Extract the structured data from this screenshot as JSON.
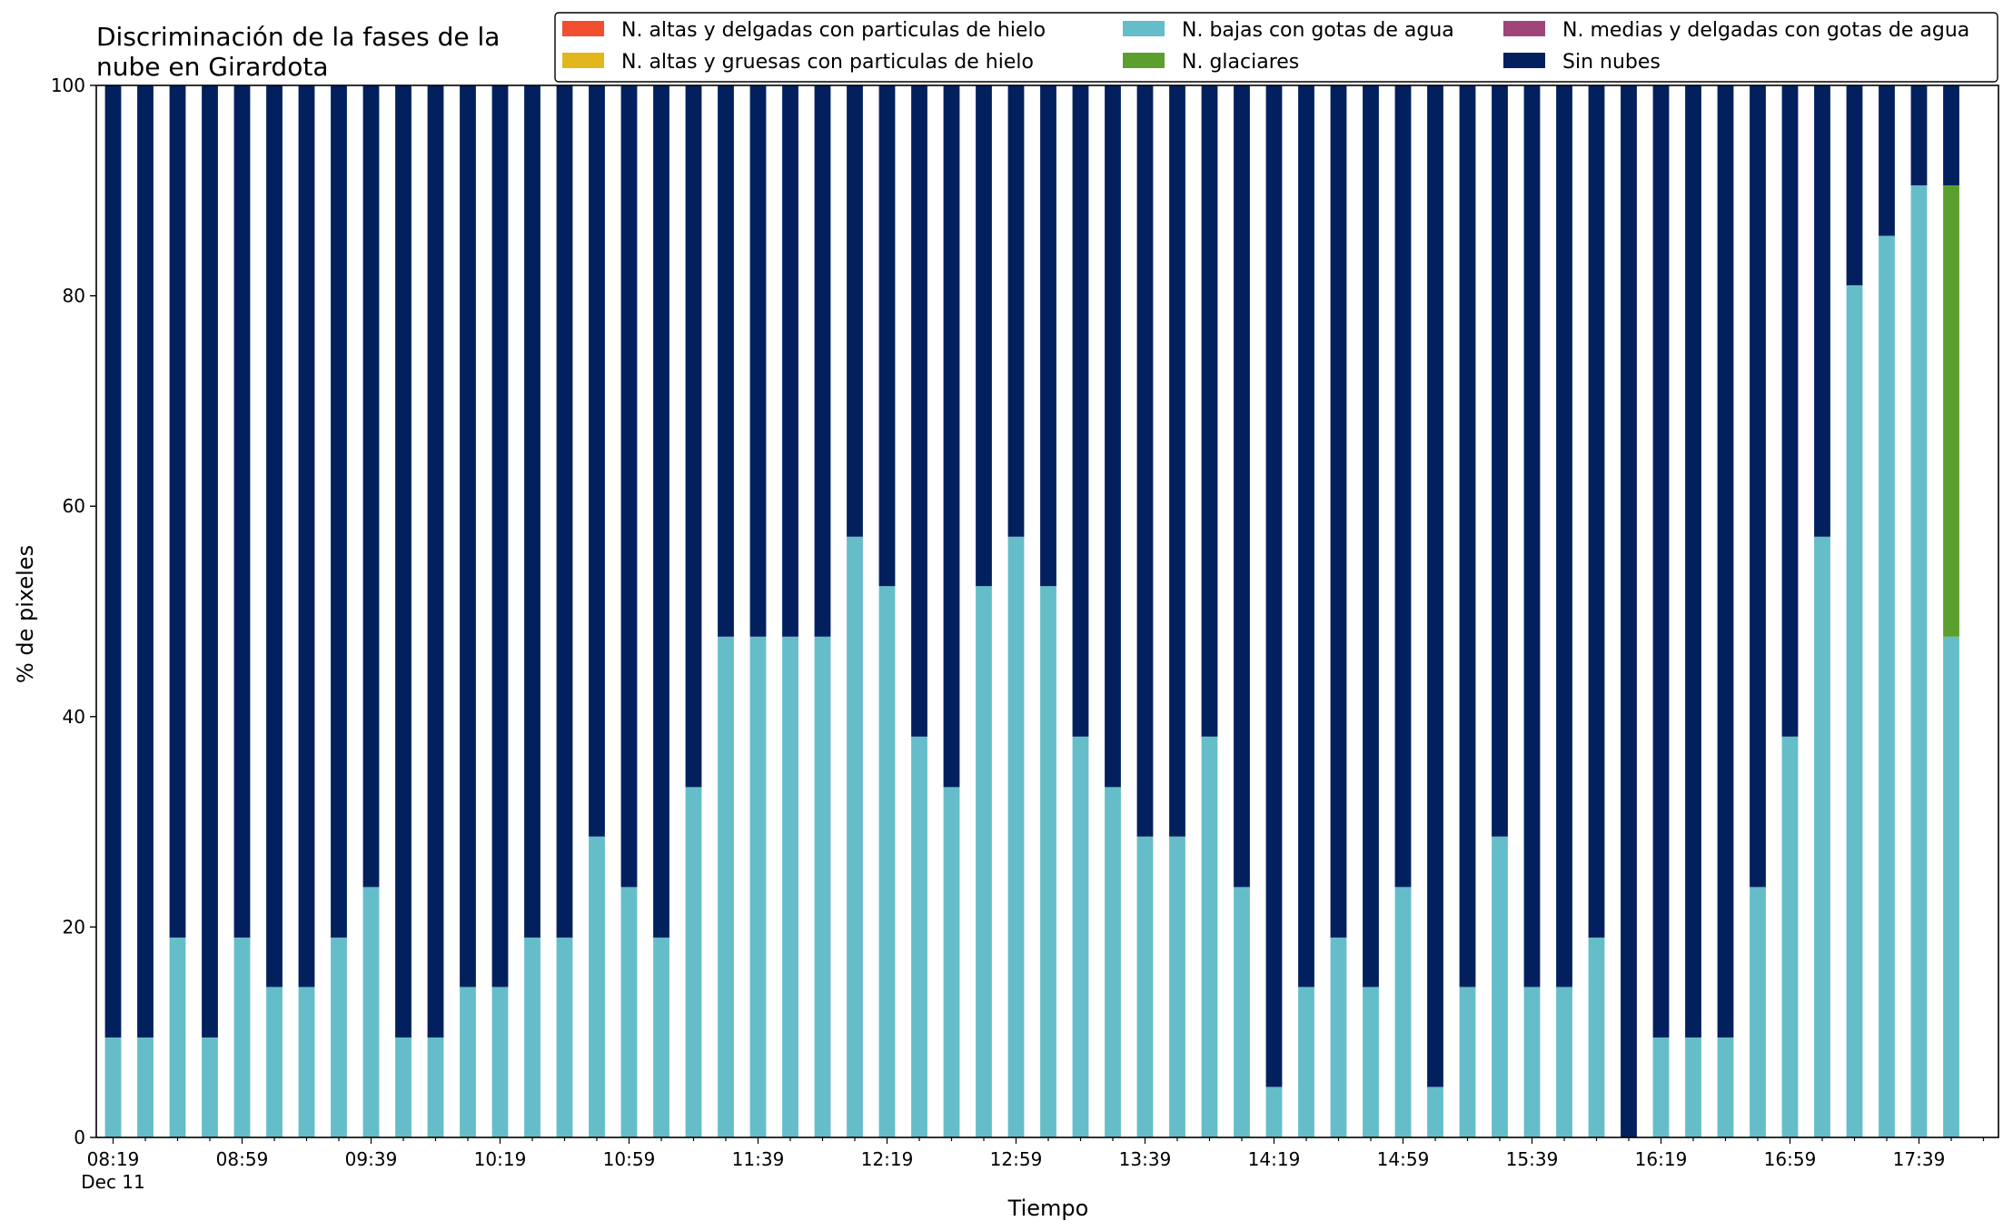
{
  "chart_data": {
    "type": "bar",
    "stacked": true,
    "title_lines": [
      "Discriminación de la fases de la",
      "nube en Girardota"
    ],
    "xlabel": "Tiempo",
    "ylabel": "% de pixeles",
    "ylim": [
      0,
      100
    ],
    "yticks": [
      0,
      20,
      40,
      60,
      80,
      100
    ],
    "x_start": "08:19",
    "x_interval_minutes": 10,
    "x_date_label": "Dec 11",
    "x_tick_labels": [
      "08:19",
      "08:59",
      "09:39",
      "10:19",
      "10:59",
      "11:39",
      "12:19",
      "12:59",
      "13:39",
      "14:19",
      "14:59",
      "15:39",
      "16:19",
      "16:59",
      "17:39"
    ],
    "legend_placement": "top-right",
    "series": [
      {
        "name": "N. altas y delgadas con particulas de hielo",
        "color": "#f04e2e",
        "values": [
          0,
          0,
          0,
          0,
          0,
          0,
          0,
          0,
          0,
          0,
          0,
          0,
          0,
          0,
          0,
          0,
          0,
          0,
          0,
          0,
          0,
          0,
          0,
          0,
          0,
          0,
          0,
          0,
          0,
          0,
          0,
          0,
          0,
          0,
          0,
          0,
          0,
          0,
          0,
          0,
          0,
          0,
          0,
          0,
          0,
          0,
          0,
          0,
          0,
          0,
          0,
          0,
          0,
          0,
          0,
          0,
          0,
          0
        ]
      },
      {
        "name": "N. altas y gruesas con particulas de hielo",
        "color": "#e2b71d",
        "values": [
          0,
          0,
          0,
          0,
          0,
          0,
          0,
          0,
          0,
          0,
          0,
          0,
          0,
          0,
          0,
          0,
          0,
          0,
          0,
          0,
          0,
          0,
          0,
          0,
          0,
          0,
          0,
          0,
          0,
          0,
          0,
          0,
          0,
          0,
          0,
          0,
          0,
          0,
          0,
          0,
          0,
          0,
          0,
          0,
          0,
          0,
          0,
          0,
          0,
          0,
          0,
          0,
          0,
          0,
          0,
          0,
          0,
          0
        ]
      },
      {
        "name": "N. bajas con gotas de agua",
        "color": "#65bdc9",
        "values": [
          9.5,
          9.5,
          19,
          9.5,
          19,
          14.3,
          14.3,
          19,
          23.8,
          9.5,
          9.5,
          14.3,
          14.3,
          19,
          19,
          28.6,
          23.8,
          19,
          33.3,
          47.6,
          47.6,
          47.6,
          47.6,
          57.1,
          52.4,
          38.1,
          33.3,
          52.4,
          57.1,
          52.4,
          38.1,
          33.3,
          28.6,
          28.6,
          38.1,
          23.8,
          4.8,
          14.3,
          19,
          14.3,
          23.8,
          4.8,
          14.3,
          28.6,
          14.3,
          14.3,
          19,
          0,
          9.5,
          9.5,
          9.5,
          23.8,
          38.1,
          57.1,
          81,
          85.7,
          90.5,
          47.6
        ]
      },
      {
        "name": "N. glaciares",
        "color": "#5b9f2f",
        "values": [
          0,
          0,
          0,
          0,
          0,
          0,
          0,
          0,
          0,
          0,
          0,
          0,
          0,
          0,
          0,
          0,
          0,
          0,
          0,
          0,
          0,
          0,
          0,
          0,
          0,
          0,
          0,
          0,
          0,
          0,
          0,
          0,
          0,
          0,
          0,
          0,
          0,
          0,
          0,
          0,
          0,
          0,
          0,
          0,
          0,
          0,
          0,
          0,
          0,
          0,
          0,
          0,
          0,
          0,
          0,
          0,
          0,
          42.9
        ]
      },
      {
        "name": "N. medias y delgadas con gotas de agua",
        "color": "#a0457a",
        "values": [
          0,
          0,
          0,
          0,
          0,
          0,
          0,
          0,
          0,
          0,
          0,
          0,
          0,
          0,
          0,
          0,
          0,
          0,
          0,
          0,
          0,
          0,
          0,
          0,
          0,
          0,
          0,
          0,
          0,
          0,
          0,
          0,
          0,
          0,
          0,
          0,
          0,
          0,
          0,
          0,
          0,
          0,
          0,
          0,
          0,
          0,
          0,
          0,
          0,
          0,
          0,
          0,
          0,
          0,
          0,
          0,
          0,
          0
        ]
      },
      {
        "name": "Sin nubes",
        "color": "#03205e",
        "values": [
          90.5,
          90.5,
          81,
          90.5,
          81,
          85.7,
          85.7,
          81,
          76.2,
          90.5,
          90.5,
          85.7,
          85.7,
          81,
          81,
          71.4,
          76.2,
          81,
          66.7,
          52.4,
          52.4,
          52.4,
          52.4,
          42.9,
          47.6,
          61.9,
          66.7,
          47.6,
          42.9,
          47.6,
          61.9,
          66.7,
          71.4,
          71.4,
          61.9,
          76.2,
          95.2,
          85.7,
          81,
          85.7,
          76.2,
          95.2,
          85.7,
          71.4,
          85.7,
          85.7,
          81,
          100,
          90.5,
          90.5,
          90.5,
          76.2,
          61.9,
          42.9,
          19,
          14.3,
          9.5,
          9.5
        ]
      }
    ]
  }
}
